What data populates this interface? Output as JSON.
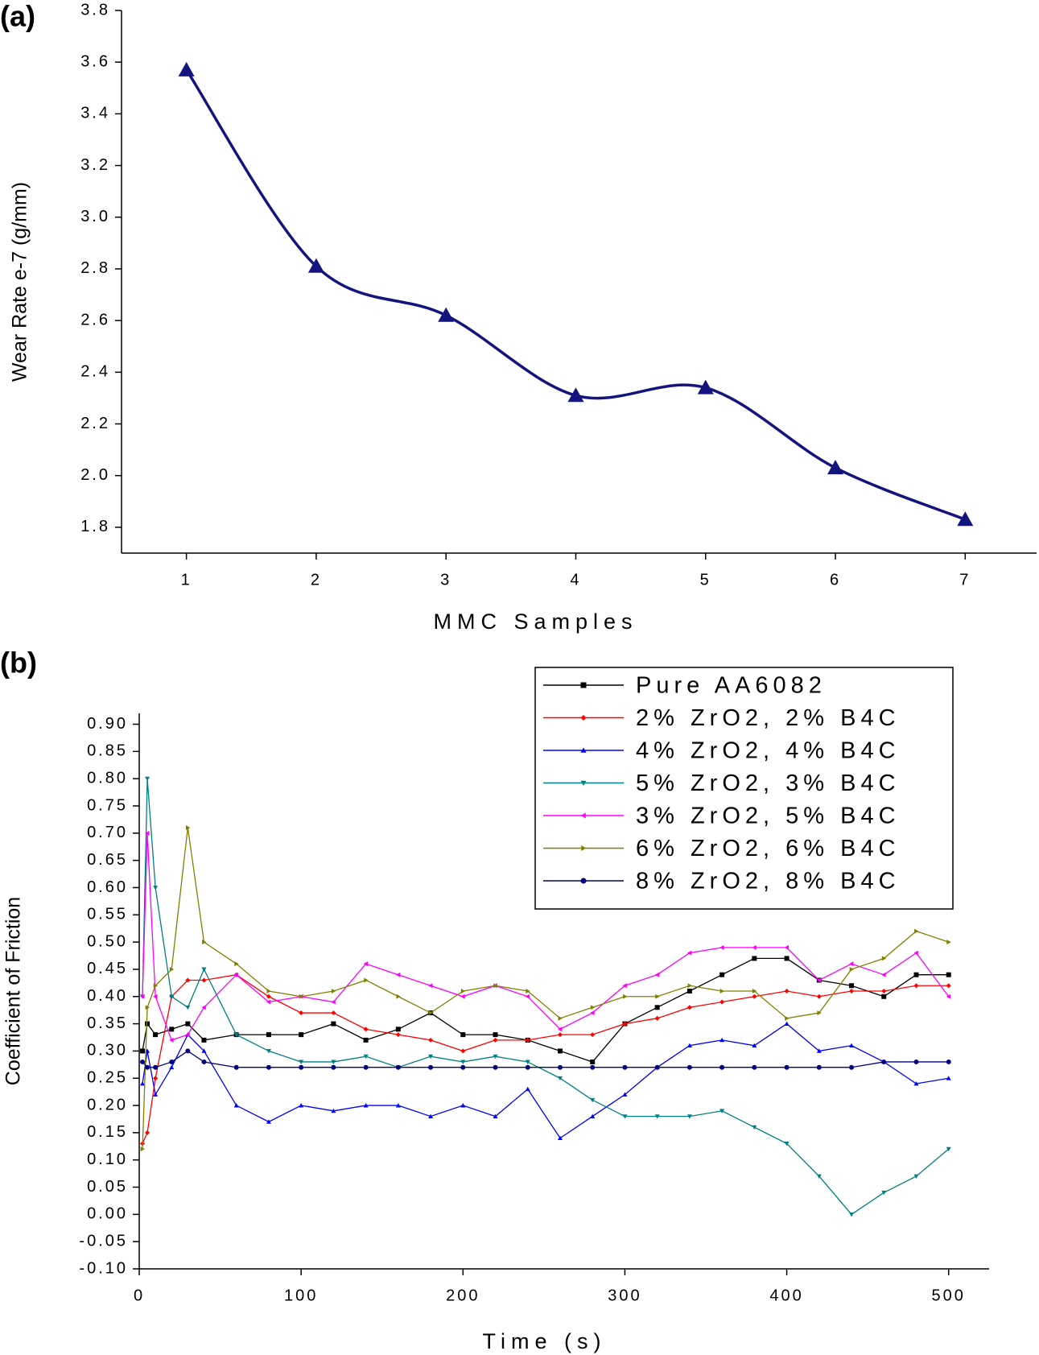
{
  "chart_data": [
    {
      "type": "line",
      "panel_label": "(a)",
      "x_label": "MMC Samples",
      "y_label": "Wear Rate e-7 (g/mm)",
      "x": [
        1,
        2,
        3,
        4,
        5,
        6,
        7
      ],
      "values": [
        3.57,
        2.81,
        2.62,
        2.31,
        2.34,
        2.03,
        1.83
      ],
      "color": "#14147e",
      "marker": "triangle-up",
      "smooth": true,
      "xlim": [
        0.5,
        7.55
      ],
      "xticks": [
        1,
        2,
        3,
        4,
        5,
        6,
        7
      ],
      "ylim": [
        1.7,
        3.8
      ],
      "yticks": [
        1.8,
        {
          "value": 2.0,
          "label": "2.0"
        },
        2.2,
        2.4,
        2.6,
        2.8,
        {
          "value": 3.0,
          "label": "3.0"
        },
        3.2,
        3.4,
        3.6,
        3.8
      ]
    },
    {
      "type": "line",
      "panel_label": "(b)",
      "x_label": "Time (s)",
      "y_label": "Coefficient of Friction",
      "legend": "upper right",
      "x": [
        2,
        5,
        10,
        20,
        30,
        40,
        60,
        80,
        100,
        120,
        140,
        160,
        180,
        200,
        220,
        240,
        260,
        280,
        300,
        320,
        340,
        360,
        380,
        400,
        420,
        440,
        460,
        480,
        500
      ],
      "series": [
        {
          "name": "Pure AA6082",
          "color": "#000000",
          "marker": "square",
          "values": [
            0.3,
            0.35,
            0.33,
            0.34,
            0.35,
            0.32,
            0.33,
            0.33,
            0.33,
            0.35,
            0.32,
            0.34,
            0.37,
            0.33,
            0.33,
            0.32,
            0.3,
            0.28,
            0.35,
            0.38,
            0.41,
            0.44,
            0.47,
            0.47,
            0.43,
            0.42,
            0.4,
            0.44,
            0.44
          ]
        },
        {
          "name": "2% ZrO2, 2% B4C",
          "color": "#ff0000",
          "marker": "diamond",
          "values": [
            0.13,
            0.15,
            0.25,
            0.4,
            0.43,
            0.43,
            0.44,
            0.4,
            0.37,
            0.37,
            0.34,
            0.33,
            0.32,
            0.3,
            0.32,
            0.32,
            0.33,
            0.33,
            0.35,
            0.36,
            0.38,
            0.39,
            0.4,
            0.41,
            0.4,
            0.41,
            0.41,
            0.42,
            0.42
          ]
        },
        {
          "name": "4% ZrO2, 4% B4C",
          "color": "#0000ff",
          "marker": "triangle-up",
          "values": [
            0.24,
            0.3,
            0.22,
            0.27,
            0.33,
            0.3,
            0.2,
            0.17,
            0.2,
            0.19,
            0.2,
            0.2,
            0.18,
            0.2,
            0.18,
            0.23,
            0.14,
            0.18,
            0.22,
            0.27,
            0.31,
            0.32,
            0.31,
            0.35,
            0.3,
            0.31,
            0.28,
            0.24,
            0.25
          ]
        },
        {
          "name": "5% ZrO2, 3% B4C",
          "color": "#008080",
          "marker": "triangle-down",
          "values": [
            0.4,
            0.8,
            0.6,
            0.4,
            0.38,
            0.45,
            0.33,
            0.3,
            0.28,
            0.28,
            0.29,
            0.27,
            0.29,
            0.28,
            0.29,
            0.28,
            0.25,
            0.21,
            0.18,
            0.18,
            0.18,
            0.19,
            0.16,
            0.13,
            0.07,
            0.0,
            0.04,
            0.07,
            0.12
          ]
        },
        {
          "name": "3% ZrO2, 5% B4C",
          "color": "#ff00ff",
          "marker": "triangle-left",
          "values": [
            0.4,
            0.7,
            0.4,
            0.32,
            0.33,
            0.38,
            0.44,
            0.39,
            0.4,
            0.39,
            0.46,
            0.44,
            0.42,
            0.4,
            0.42,
            0.4,
            0.34,
            0.37,
            0.42,
            0.44,
            0.48,
            0.49,
            0.49,
            0.49,
            0.43,
            0.46,
            0.44,
            0.48,
            0.4
          ]
        },
        {
          "name": "6% ZrO2, 6% B4C",
          "color": "#808000",
          "marker": "triangle-right",
          "values": [
            0.12,
            0.38,
            0.42,
            0.45,
            0.71,
            0.5,
            0.46,
            0.41,
            0.4,
            0.41,
            0.43,
            0.4,
            0.37,
            0.41,
            0.42,
            0.41,
            0.36,
            0.38,
            0.4,
            0.4,
            0.42,
            0.41,
            0.41,
            0.36,
            0.37,
            0.45,
            0.47,
            0.52,
            0.5
          ]
        },
        {
          "name": "8% ZrO2, 8% B4C",
          "color": "#000080",
          "marker": "circle",
          "values": [
            0.28,
            0.27,
            0.27,
            0.28,
            0.3,
            0.28,
            0.27,
            0.27,
            0.27,
            0.27,
            0.27,
            0.27,
            0.27,
            0.27,
            0.27,
            0.27,
            0.27,
            0.27,
            0.27,
            0.27,
            0.27,
            0.27,
            0.27,
            0.27,
            0.27,
            0.27,
            0.28,
            0.28,
            0.28
          ]
        }
      ],
      "xlim": [
        0,
        525
      ],
      "xticks": [
        0,
        100,
        200,
        300,
        400,
        500
      ],
      "ylim": [
        -0.1,
        0.92
      ],
      "yticks": [
        {
          "value": -0.1,
          "label": "-0.10"
        },
        -0.05,
        {
          "value": 0,
          "label": "0.00"
        },
        0.05,
        {
          "value": 0.1,
          "label": "0.10"
        },
        0.15,
        {
          "value": 0.2,
          "label": "0.20"
        },
        0.25,
        {
          "value": 0.3,
          "label": "0.30"
        },
        0.35,
        {
          "value": 0.4,
          "label": "0.40"
        },
        0.45,
        {
          "value": 0.5,
          "label": "0.50"
        },
        0.55,
        {
          "value": 0.6,
          "label": "0.60"
        },
        0.65,
        {
          "value": 0.7,
          "label": "0.70"
        },
        0.75,
        {
          "value": 0.8,
          "label": "0.80"
        },
        0.85,
        {
          "value": 0.9,
          "label": "0.90"
        }
      ]
    }
  ]
}
